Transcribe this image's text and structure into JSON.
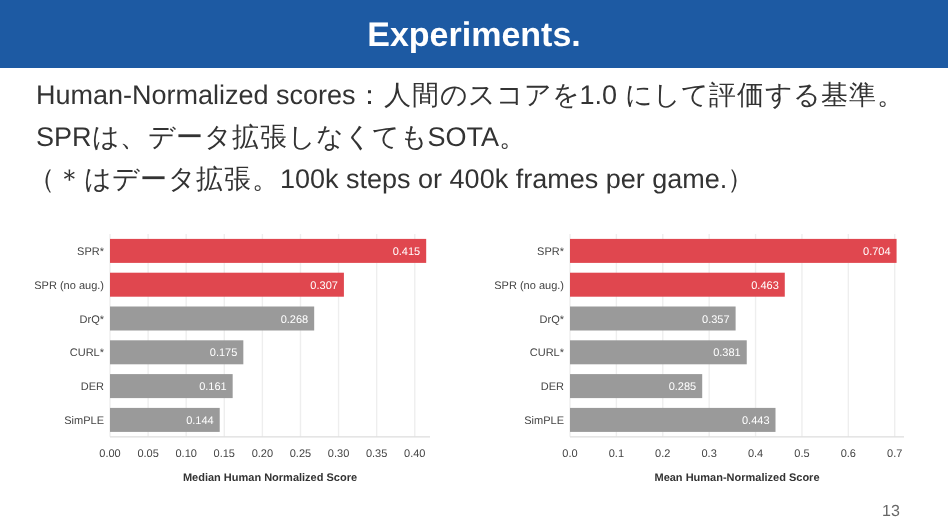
{
  "chart_data": [
    {
      "type": "bar",
      "orientation": "horizontal",
      "title": "Experiments.",
      "annotations": [
        "Human-Normalized scores：人間のスコアを1.0 にして評価する基準。",
        "SPRは、データ拡張しなくてもSOTA。",
        "（＊はデータ拡張。100k steps or 400k frames per game.）"
      ],
      "xlabel": "Median Human Normalized Score",
      "categories": [
        "SPR*",
        "SPR (no aug.)",
        "DrQ*",
        "CURL*",
        "DER",
        "SimPLE"
      ],
      "values": [
        0.415,
        0.307,
        0.268,
        0.175,
        0.161,
        0.144
      ],
      "colors": [
        "#e0474f",
        "#e0474f",
        "#9a9a9a",
        "#9a9a9a",
        "#9a9a9a",
        "#9a9a9a"
      ],
      "data_labels": true,
      "grid": "x",
      "xlim": [
        0,
        0.42
      ],
      "xticks": [
        {
          "value": 0,
          "label": "0.00"
        },
        {
          "value": 0.05,
          "label": "0.05"
        },
        {
          "value": 0.1,
          "label": "0.10"
        },
        {
          "value": 0.15,
          "label": "0.15"
        },
        {
          "value": 0.2,
          "label": "0.20"
        },
        {
          "value": 0.25,
          "label": "0.25"
        },
        {
          "value": 0.3,
          "label": "0.30"
        },
        {
          "value": 0.35,
          "label": "0.35"
        },
        {
          "value": 0.4,
          "label": "0.40"
        }
      ]
    },
    {
      "type": "bar",
      "orientation": "horizontal",
      "annotations": [
        "13"
      ],
      "xlabel": "Mean Human-Normalized Score",
      "categories": [
        "SPR*",
        "SPR (no aug.)",
        "DrQ*",
        "CURL*",
        "DER",
        "SimPLE"
      ],
      "values": [
        0.704,
        0.463,
        0.357,
        0.381,
        0.285,
        0.443
      ],
      "colors": [
        "#e0474f",
        "#e0474f",
        "#9a9a9a",
        "#9a9a9a",
        "#9a9a9a",
        "#9a9a9a"
      ],
      "data_labels": true,
      "grid": "x",
      "xlim": [
        0,
        0.72
      ],
      "xticks": [
        {
          "value": 0,
          "label": "0.0"
        },
        {
          "value": 0.1,
          "label": "0.1"
        },
        {
          "value": 0.2,
          "label": "0.2"
        },
        {
          "value": 0.3,
          "label": "0.3"
        },
        {
          "value": 0.4,
          "label": "0.4"
        },
        {
          "value": 0.5,
          "label": "0.5"
        },
        {
          "value": 0.6,
          "label": "0.6"
        },
        {
          "value": 0.7,
          "label": "0.7"
        }
      ]
    }
  ]
}
